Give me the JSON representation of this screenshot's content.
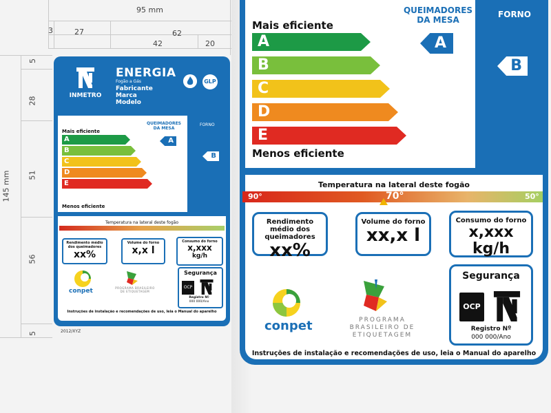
{
  "dimensions": {
    "top_width": "95 mm",
    "row1_a": "3",
    "row1_b": "27",
    "row2_a": "3",
    "row2_b": "62",
    "row3_a": "42",
    "row3_b": "20",
    "height_total": "145 mm",
    "v1": "5",
    "v2": "28",
    "v3": "51",
    "v4": "56",
    "v5": "5"
  },
  "small_label": {
    "inmetro": "INMETRO",
    "energia": "ENERGIA",
    "subtitle": "Fogão a Gás",
    "fields": [
      "Fabricante",
      "Marca",
      "Modelo"
    ],
    "glp": "GLP",
    "queimadores": "QUEIMADORES DA MESA",
    "forno": "FORNO",
    "mais": "Mais eficiente",
    "menos": "Menos eficiente",
    "grades": [
      "A",
      "B",
      "C",
      "D",
      "E"
    ],
    "queim_grade": "A",
    "forno_grade": "B",
    "temp_title": "Temperatura na lateral deste fogão",
    "rend_title": "Rendimento médio dos queimadores",
    "rend_value": "xx%",
    "vol_title": "Volume do forno",
    "vol_value": "x,x l",
    "cons_title": "Consumo do forno",
    "cons_value": "x,xxx",
    "cons_unit": "kg/h",
    "seguranca": "Segurança",
    "ocp": "OCP",
    "registro": "Registro Nº",
    "registro_val": "000 000/Ano",
    "conpet": "conpet",
    "programa": "PROGRAMA BRASILEIRO DE ETIQUETAGEM",
    "footer": "Instruções de instalação e recomendações de uso, leia o Manual do aparelho",
    "code": "2012/XYZ"
  },
  "big_label": {
    "mais": "Mais eficiente",
    "menos": "Menos eficiente",
    "grades": [
      "A",
      "B",
      "C",
      "D",
      "E"
    ],
    "queimadores": "QUEIMADORES DA MESA",
    "queim_grade": "A",
    "forno": "FORNO",
    "forno_grade": "B",
    "temp_title": "Temperatura na lateral deste fogão",
    "temp_left": "90°",
    "temp_mid": "70°",
    "temp_right": "50°",
    "rend_title": "Rendimento médio dos queimadores",
    "rend_value": "xx%",
    "vol_title": "Volume do forno",
    "vol_value": "xx,x l",
    "cons_title": "Consumo do forno",
    "cons_value": "x,xxx",
    "cons_unit": "kg/h",
    "conpet": "conpet",
    "programa": "PROGRAMA BRASILEIRO DE ETIQUETAGEM",
    "seguranca": "Segurança",
    "ocp": "OCP",
    "registro": "Registro Nº",
    "registro_val": "000 000/Ano",
    "footer": "Instruções de instalação e recomendações de uso, leia o Manual do aparelho"
  },
  "colors": {
    "blue": "#1a6fb6",
    "grade_A": "#1d9a46",
    "grade_B": "#79bf3c",
    "grade_C": "#f2c21a",
    "grade_D": "#ef8a1f",
    "grade_E": "#e02a22"
  }
}
